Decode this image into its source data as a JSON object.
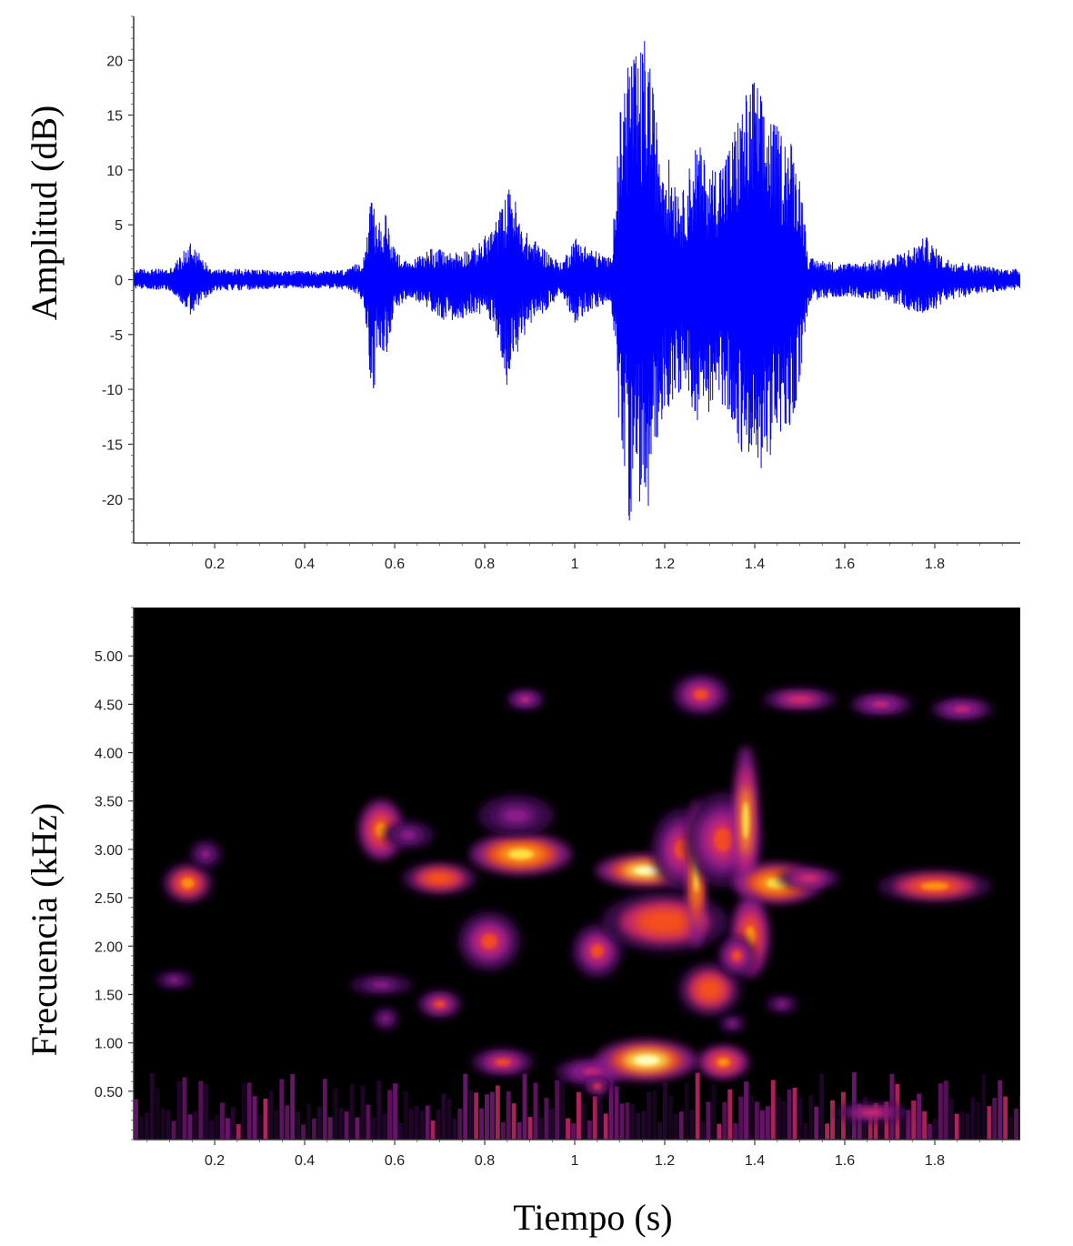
{
  "chart_data": [
    {
      "type": "line",
      "ylabel": "Amplitud (dB)",
      "xlabel": "",
      "xlim": [
        0.02,
        1.99
      ],
      "ylim": [
        -24,
        24
      ],
      "x_ticks": [
        0.2,
        0.4,
        0.6,
        0.8,
        1.0,
        1.2,
        1.4,
        1.6,
        1.8
      ],
      "x_tick_labels": [
        "0.2",
        "0.4",
        "0.6",
        "0.8",
        "1",
        "1.2",
        "1.4",
        "1.6",
        "1.8"
      ],
      "y_ticks": [
        20,
        15,
        10,
        5,
        0,
        -5,
        -10,
        -15,
        -20
      ],
      "y_tick_labels": [
        "20",
        "15",
        "10",
        "5",
        "0",
        "-5",
        "-10",
        "-15",
        "-20"
      ],
      "grid": false,
      "color": "#0000ff",
      "series": [
        {
          "envelope_time_s": [
            0.02,
            0.1,
            0.13,
            0.15,
            0.17,
            0.2,
            0.28,
            0.35,
            0.45,
            0.5,
            0.53,
            0.55,
            0.56,
            0.58,
            0.6,
            0.63,
            0.68,
            0.72,
            0.78,
            0.82,
            0.85,
            0.86,
            0.88,
            0.9,
            0.93,
            0.97,
            1.0,
            1.03,
            1.08,
            1.1,
            1.12,
            1.14,
            1.16,
            1.18,
            1.2,
            1.24,
            1.27,
            1.3,
            1.34,
            1.37,
            1.4,
            1.42,
            1.45,
            1.48,
            1.5,
            1.52,
            1.6,
            1.7,
            1.75,
            1.78,
            1.82,
            1.88,
            1.95,
            1.99
          ],
          "envelope_max_db": [
            1,
            1,
            2.5,
            4,
            2,
            1,
            1,
            0.8,
            0.8,
            1,
            2,
            8,
            5,
            6,
            3,
            1.5,
            3,
            2.5,
            3,
            5,
            8,
            9,
            5,
            4,
            3,
            1.5,
            4,
            3,
            2,
            15,
            22,
            20,
            23,
            15,
            12,
            8,
            13,
            10,
            12,
            16,
            19,
            16,
            14,
            13,
            10,
            2,
            1.5,
            2,
            3,
            4,
            2,
            1.5,
            1,
            1
          ],
          "envelope_min_db": [
            -0.8,
            -1,
            -2.5,
            -3.5,
            -2,
            -1,
            -1,
            -0.8,
            -0.8,
            -1,
            -2,
            -12,
            -6,
            -7,
            -3,
            -1.5,
            -3,
            -4,
            -3,
            -4,
            -10,
            -8,
            -6,
            -4,
            -3,
            -1.5,
            -4,
            -3,
            -2,
            -15,
            -22,
            -20,
            -23,
            -15,
            -12,
            -10,
            -13,
            -12,
            -12,
            -16,
            -18,
            -17,
            -15,
            -14,
            -9,
            -2,
            -1.5,
            -2,
            -3,
            -3.5,
            -2,
            -1.5,
            -1,
            -1
          ]
        }
      ]
    },
    {
      "type": "heatmap",
      "ylabel": "Frecuencia (kHz)",
      "xlabel": "Tiempo (s)",
      "xlim": [
        0.02,
        1.99
      ],
      "ylim": [
        0,
        5.5
      ],
      "x_ticks": [
        0.2,
        0.4,
        0.6,
        0.8,
        1.0,
        1.2,
        1.4,
        1.6,
        1.8
      ],
      "x_tick_labels": [
        "0.2",
        "0.4",
        "0.6",
        "0.8",
        "1",
        "1.2",
        "1.4",
        "1.6",
        "1.8"
      ],
      "y_ticks": [
        5.0,
        4.5,
        4.0,
        3.5,
        3.0,
        2.5,
        2.0,
        1.5,
        1.0,
        0.5
      ],
      "y_tick_labels": [
        "5.00",
        "4.50",
        "4.00",
        "3.50",
        "3.00",
        "2.50",
        "2.00",
        "1.50",
        "1.00",
        "0.50"
      ],
      "grid": false,
      "background": "#000000",
      "colormap": [
        "#000000",
        "#3d0a4f",
        "#8a1b8c",
        "#d02a6e",
        "#f5501e",
        "#ff9a0a",
        "#ffe84a",
        "#ffffc8"
      ],
      "energy_regions": [
        {
          "t": 0.14,
          "f": 2.65,
          "dt": 0.04,
          "df": 0.15,
          "i": 0.65
        },
        {
          "t": 0.18,
          "f": 2.95,
          "dt": 0.025,
          "df": 0.1,
          "i": 0.35
        },
        {
          "t": 0.11,
          "f": 1.65,
          "dt": 0.03,
          "df": 0.06,
          "i": 0.3
        },
        {
          "t": 0.57,
          "f": 3.2,
          "dt": 0.035,
          "df": 0.22,
          "i": 0.75
        },
        {
          "t": 0.63,
          "f": 3.15,
          "dt": 0.04,
          "df": 0.1,
          "i": 0.3
        },
        {
          "t": 0.57,
          "f": 1.6,
          "dt": 0.05,
          "df": 0.07,
          "i": 0.35
        },
        {
          "t": 0.58,
          "f": 1.25,
          "dt": 0.02,
          "df": 0.08,
          "i": 0.35
        },
        {
          "t": 0.7,
          "f": 2.7,
          "dt": 0.06,
          "df": 0.12,
          "i": 0.6
        },
        {
          "t": 0.7,
          "f": 1.4,
          "dt": 0.035,
          "df": 0.1,
          "i": 0.55
        },
        {
          "t": 0.81,
          "f": 2.05,
          "dt": 0.05,
          "df": 0.22,
          "i": 0.55
        },
        {
          "t": 0.88,
          "f": 2.95,
          "dt": 0.08,
          "df": 0.15,
          "i": 0.85
        },
        {
          "t": 0.87,
          "f": 3.35,
          "dt": 0.06,
          "df": 0.15,
          "i": 0.35
        },
        {
          "t": 0.84,
          "f": 0.8,
          "dt": 0.05,
          "df": 0.1,
          "i": 0.55
        },
        {
          "t": 0.89,
          "f": 4.55,
          "dt": 0.03,
          "df": 0.07,
          "i": 0.4
        },
        {
          "t": 1.05,
          "f": 1.95,
          "dt": 0.04,
          "df": 0.2,
          "i": 0.55
        },
        {
          "t": 1.04,
          "f": 0.7,
          "dt": 0.06,
          "df": 0.1,
          "i": 0.4
        },
        {
          "t": 1.05,
          "f": 0.55,
          "dt": 0.02,
          "df": 0.06,
          "i": 0.55
        },
        {
          "t": 1.16,
          "f": 2.78,
          "dt": 0.08,
          "df": 0.12,
          "i": 0.98
        },
        {
          "t": 1.2,
          "f": 2.25,
          "dt": 0.1,
          "df": 0.22,
          "i": 0.6
        },
        {
          "t": 1.24,
          "f": 3.0,
          "dt": 0.05,
          "df": 0.3,
          "i": 0.5
        },
        {
          "t": 1.27,
          "f": 2.75,
          "dt": 0.015,
          "df": 0.55,
          "i": 0.85
        },
        {
          "t": 1.33,
          "f": 3.1,
          "dt": 0.06,
          "df": 0.35,
          "i": 0.55
        },
        {
          "t": 1.38,
          "f": 3.3,
          "dt": 0.02,
          "df": 0.55,
          "i": 0.8
        },
        {
          "t": 1.45,
          "f": 2.65,
          "dt": 0.07,
          "df": 0.15,
          "i": 0.9
        },
        {
          "t": 1.52,
          "f": 2.7,
          "dt": 0.05,
          "df": 0.08,
          "i": 0.45
        },
        {
          "t": 1.39,
          "f": 2.1,
          "dt": 0.03,
          "df": 0.3,
          "i": 0.75
        },
        {
          "t": 1.3,
          "f": 1.55,
          "dt": 0.05,
          "df": 0.2,
          "i": 0.6
        },
        {
          "t": 1.36,
          "f": 1.9,
          "dt": 0.03,
          "df": 0.15,
          "i": 0.5
        },
        {
          "t": 1.16,
          "f": 0.82,
          "dt": 0.08,
          "df": 0.15,
          "i": 0.98
        },
        {
          "t": 1.33,
          "f": 0.8,
          "dt": 0.04,
          "df": 0.12,
          "i": 0.75
        },
        {
          "t": 1.28,
          "f": 4.6,
          "dt": 0.045,
          "df": 0.15,
          "i": 0.55
        },
        {
          "t": 1.5,
          "f": 4.55,
          "dt": 0.06,
          "df": 0.08,
          "i": 0.45
        },
        {
          "t": 1.68,
          "f": 4.5,
          "dt": 0.05,
          "df": 0.08,
          "i": 0.4
        },
        {
          "t": 1.86,
          "f": 4.45,
          "dt": 0.05,
          "df": 0.08,
          "i": 0.4
        },
        {
          "t": 1.8,
          "f": 2.62,
          "dt": 0.09,
          "df": 0.12,
          "i": 0.7
        },
        {
          "t": 1.66,
          "f": 0.28,
          "dt": 0.06,
          "df": 0.06,
          "i": 0.45
        },
        {
          "t": 1.46,
          "f": 1.4,
          "dt": 0.025,
          "df": 0.06,
          "i": 0.3
        },
        {
          "t": 1.35,
          "f": 1.2,
          "dt": 0.02,
          "df": 0.06,
          "i": 0.35
        }
      ]
    }
  ]
}
